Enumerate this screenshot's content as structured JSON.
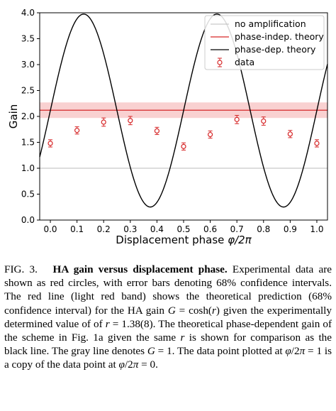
{
  "chart_data": {
    "type": "line",
    "xlabel_prefix": "Displacement phase ",
    "xlabel_math": "φ/2π",
    "ylabel": "Gain",
    "xlim": [
      -0.04,
      1.04
    ],
    "ylim": [
      0.0,
      4.0
    ],
    "xticks": [
      0.0,
      0.1,
      0.2,
      0.3,
      0.4,
      0.5,
      0.6,
      0.7,
      0.8,
      0.9,
      1.0
    ],
    "xtick_labels": [
      "0.0",
      "0.1",
      "0.2",
      "0.3",
      "0.4",
      "0.5",
      "0.6",
      "0.7",
      "0.8",
      "0.9",
      "1.0"
    ],
    "yticks": [
      0.0,
      0.5,
      1.0,
      1.5,
      2.0,
      2.5,
      3.0,
      3.5,
      4.0
    ],
    "ytick_labels": [
      "0.0",
      "0.5",
      "1.0",
      "1.5",
      "2.0",
      "2.5",
      "3.0",
      "3.5",
      "4.0"
    ],
    "legend_position": "top-right",
    "series": [
      {
        "name": "no amplification",
        "kind": "hline",
        "y": 1.0,
        "color": "#bbbbbb"
      },
      {
        "name": "phase-indep. theory",
        "kind": "hline_band",
        "y": 2.12,
        "band": [
          1.97,
          2.27
        ],
        "color": "#d62728",
        "band_color": "#f7c6c6"
      },
      {
        "name": "phase-dep. theory",
        "kind": "curve",
        "r": 1.38,
        "color": "#000000",
        "description_formula": "G = cosh(r) + sinh(r)*sin(4*pi*x)"
      },
      {
        "name": "data",
        "kind": "errorbar",
        "color": "#d62728",
        "x": [
          0.0,
          0.1,
          0.2,
          0.3,
          0.4,
          0.5,
          0.6,
          0.7,
          0.8,
          0.9,
          1.0
        ],
        "y": [
          1.48,
          1.73,
          1.89,
          1.92,
          1.72,
          1.42,
          1.65,
          1.94,
          1.91,
          1.66,
          1.48
        ],
        "err": [
          0.07,
          0.07,
          0.08,
          0.08,
          0.07,
          0.07,
          0.07,
          0.08,
          0.08,
          0.07,
          0.07
        ]
      }
    ]
  },
  "caption": {
    "label": "FIG. 3.",
    "title": "HA gain versus displacement phase.",
    "p1": "Experimental data are shown as red circles, with error bars denoting 68% confidence intervals. The red line (light red band) shows the theoretical prediction (68% confidence interval) for the HA gain ",
    "m1": "G",
    "p2": " = cosh(",
    "m2": "r",
    "p3": ") given the experimentally determined value of of ",
    "m3": "r",
    "p4": " = 1.38(8). The theoretical phase-dependent gain of the scheme in Fig. 1a given the same ",
    "m4": "r",
    "p5": " is shown for comparison as the black line. The gray line denotes ",
    "m5": "G",
    "p6": " = 1. The data point plotted at ",
    "m6": "φ",
    "p7": "/2",
    "m7": "π",
    "p8": " = 1 is a copy of the data point at ",
    "m8": "φ",
    "p9": "/2",
    "m9": "π",
    "p10": " = 0."
  }
}
